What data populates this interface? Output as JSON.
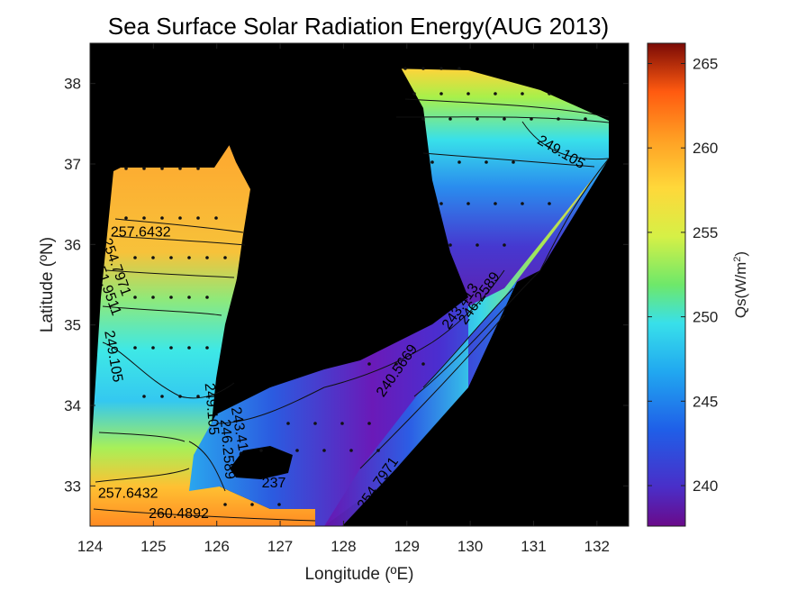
{
  "chart_data": {
    "type": "heatmap",
    "title": "Sea Surface Solar Radiation Energy(AUG 2013)",
    "xlabel": "Longitude (ºE)",
    "ylabel": "Latitude (ºN)",
    "xlim": [
      124,
      132.5
    ],
    "ylim": [
      32.5,
      38.5
    ],
    "x_ticks": [
      "124",
      "125",
      "126",
      "127",
      "128",
      "129",
      "130",
      "131",
      "132"
    ],
    "y_ticks": [
      "33",
      "34",
      "35",
      "36",
      "37",
      "38"
    ],
    "colorbar": {
      "label": "Qs(W/m2)",
      "label_base": "Qs(W/m",
      "label_sup": "2",
      "label_end": ")",
      "range": [
        237.6,
        266.2
      ],
      "ticks": [
        "240",
        "245",
        "250",
        "255",
        "260",
        "265"
      ]
    },
    "contour_labels": [
      {
        "text": "257.6432",
        "lon": 124.8,
        "lat": 36.1
      },
      {
        "text": "257.6432",
        "lon": 124.6,
        "lat": 32.85
      },
      {
        "text": "260.4892",
        "lon": 125.4,
        "lat": 32.6
      },
      {
        "text": "254.7971",
        "lon": 124.35,
        "lat": 35.7
      },
      {
        "text": "251.9511",
        "lon": 124.2,
        "lat": 35.45
      },
      {
        "text": "249.105",
        "lon": 124.3,
        "lat": 34.6
      },
      {
        "text": "249.105",
        "lon": 131.4,
        "lat": 37.1
      },
      {
        "text": "249.105",
        "lon": 125.85,
        "lat": 33.95
      },
      {
        "text": "246.2589",
        "lon": 126.1,
        "lat": 33.45
      },
      {
        "text": "243.413",
        "lon": 126.3,
        "lat": 33.65
      },
      {
        "text": "240.5669",
        "lon": 128.9,
        "lat": 34.4
      },
      {
        "text": "243.413",
        "lon": 129.9,
        "lat": 35.2
      },
      {
        "text": "246.2589",
        "lon": 130.2,
        "lat": 35.3
      },
      {
        "text": "254.7971",
        "lon": 128.6,
        "lat": 33.0
      },
      {
        "text": "237",
        "lon": 126.9,
        "lat": 32.98
      }
    ]
  }
}
